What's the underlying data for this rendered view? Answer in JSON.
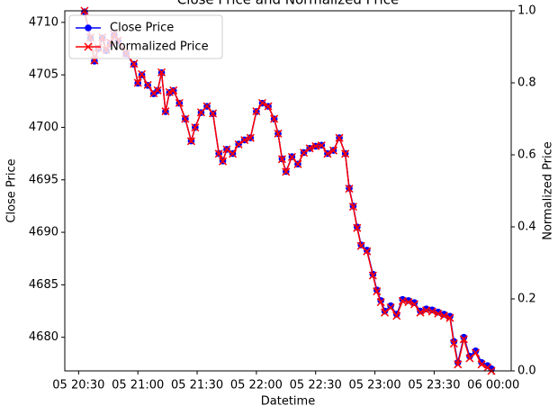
{
  "chart_data": {
    "type": "line",
    "title": "Close Price and Normalized Price",
    "x_label": "Datetime",
    "y_label": "Close Price",
    "y2_label": "Normalized Price",
    "y_label_color": "blue",
    "y2_label_color": "red",
    "legend": "upper left",
    "x": [
      "05 20:33",
      "05 20:36",
      "05 20:38",
      "05 20:40",
      "05 20:42",
      "05 20:44",
      "05 20:46",
      "05 20:48",
      "05 20:50",
      "05 20:54",
      "05 20:58",
      "05 21:00",
      "05 21:02",
      "05 21:05",
      "05 21:08",
      "05 21:10",
      "05 21:12",
      "05 21:14",
      "05 21:16",
      "05 21:18",
      "05 21:21",
      "05 21:24",
      "05 21:27",
      "05 21:29",
      "05 21:32",
      "05 21:35",
      "05 21:38",
      "05 21:41",
      "05 21:43",
      "05 21:45",
      "05 21:48",
      "05 21:51",
      "05 21:54",
      "05 21:57",
      "05 22:00",
      "05 22:03",
      "05 22:06",
      "05 22:09",
      "05 22:11",
      "05 22:13",
      "05 22:15",
      "05 22:18",
      "05 22:21",
      "05 22:24",
      "05 22:27",
      "05 22:30",
      "05 22:33",
      "05 22:36",
      "05 22:39",
      "05 22:42",
      "05 22:45",
      "05 22:47",
      "05 22:49",
      "05 22:51",
      "05 22:53",
      "05 22:56",
      "05 22:59",
      "05 23:01",
      "05 23:03",
      "05 23:05",
      "05 23:08",
      "05 23:11",
      "05 23:14",
      "05 23:17",
      "05 23:20",
      "05 23:23",
      "05 23:26",
      "05 23:29",
      "05 23:32",
      "05 23:35",
      "05 23:38",
      "05 23:40",
      "05 23:42",
      "05 23:45",
      "05 23:48",
      "05 23:51",
      "05 23:54",
      "05 23:57",
      "05 23:59"
    ],
    "series": [
      {
        "name": "Close Price",
        "color": "blue",
        "marker": "o",
        "values": [
          4711,
          4708.5,
          4706.3,
          4707.5,
          4708.5,
          4707.3,
          4708.0,
          4708.8,
          4708.2,
          4707.0,
          4706.0,
          4704.2,
          4705.0,
          4704.0,
          4703.2,
          4703.5,
          4705.2,
          4701.5,
          4703.3,
          4703.5,
          4702.3,
          4700.8,
          4698.7,
          4700.0,
          4701.4,
          4702.0,
          4701.3,
          4697.5,
          4696.8,
          4697.9,
          4697.5,
          4698.4,
          4698.8,
          4699.0,
          4701.5,
          4702.3,
          4702.0,
          4700.8,
          4699.4,
          4697.0,
          4695.8,
          4697.2,
          4696.5,
          4697.6,
          4698.0,
          4698.2,
          4698.3,
          4697.5,
          4697.8,
          4699.0,
          4697.5,
          4694.2,
          4692.5,
          4690.5,
          4688.8,
          4688.3,
          4686.0,
          4684.5,
          4683.5,
          4682.5,
          4683.0,
          4682.2,
          4683.6,
          4683.5,
          4683.3,
          4682.5,
          4682.7,
          4682.6,
          4682.4,
          4682.2,
          4682.0,
          4679.6,
          4677.6,
          4680.0,
          4678.2,
          4678.7,
          4677.6,
          4677.3,
          4677.0
        ]
      },
      {
        "name": "Normalized Price",
        "color": "red",
        "marker": "x",
        "axis": "y2",
        "values": [
          1.0,
          0.926,
          0.862,
          0.897,
          0.926,
          0.891,
          0.912,
          0.935,
          0.918,
          0.882,
          0.853,
          0.8,
          0.824,
          0.794,
          0.771,
          0.779,
          0.829,
          0.721,
          0.774,
          0.779,
          0.744,
          0.7,
          0.638,
          0.676,
          0.718,
          0.735,
          0.715,
          0.603,
          0.582,
          0.615,
          0.603,
          0.629,
          0.641,
          0.647,
          0.721,
          0.744,
          0.735,
          0.7,
          0.659,
          0.588,
          0.553,
          0.594,
          0.574,
          0.606,
          0.618,
          0.624,
          0.626,
          0.603,
          0.612,
          0.647,
          0.603,
          0.506,
          0.456,
          0.397,
          0.347,
          0.332,
          0.265,
          0.221,
          0.191,
          0.162,
          0.176,
          0.153,
          0.194,
          0.191,
          0.185,
          0.162,
          0.168,
          0.165,
          0.159,
          0.153,
          0.147,
          0.076,
          0.018,
          0.088,
          0.035,
          0.05,
          0.018,
          0.009,
          0.0
        ]
      }
    ],
    "xlim": [
      "05 20:23",
      "06 00:09"
    ],
    "xticks": [
      "05 20:30",
      "05 21:00",
      "05 21:30",
      "05 22:00",
      "05 22:30",
      "05 23:00",
      "05 23:30",
      "06 00:00"
    ],
    "ylim": [
      4676.8,
      4711.1
    ],
    "yticks": [
      4680,
      4685,
      4690,
      4695,
      4700,
      4705,
      4710
    ],
    "y2lim": [
      0,
      1
    ],
    "y2ticks": [
      {
        "value": 0,
        "label": "0.0"
      },
      0.2,
      0.4,
      0.6,
      0.8,
      {
        "value": 1,
        "label": "1.0"
      }
    ]
  }
}
